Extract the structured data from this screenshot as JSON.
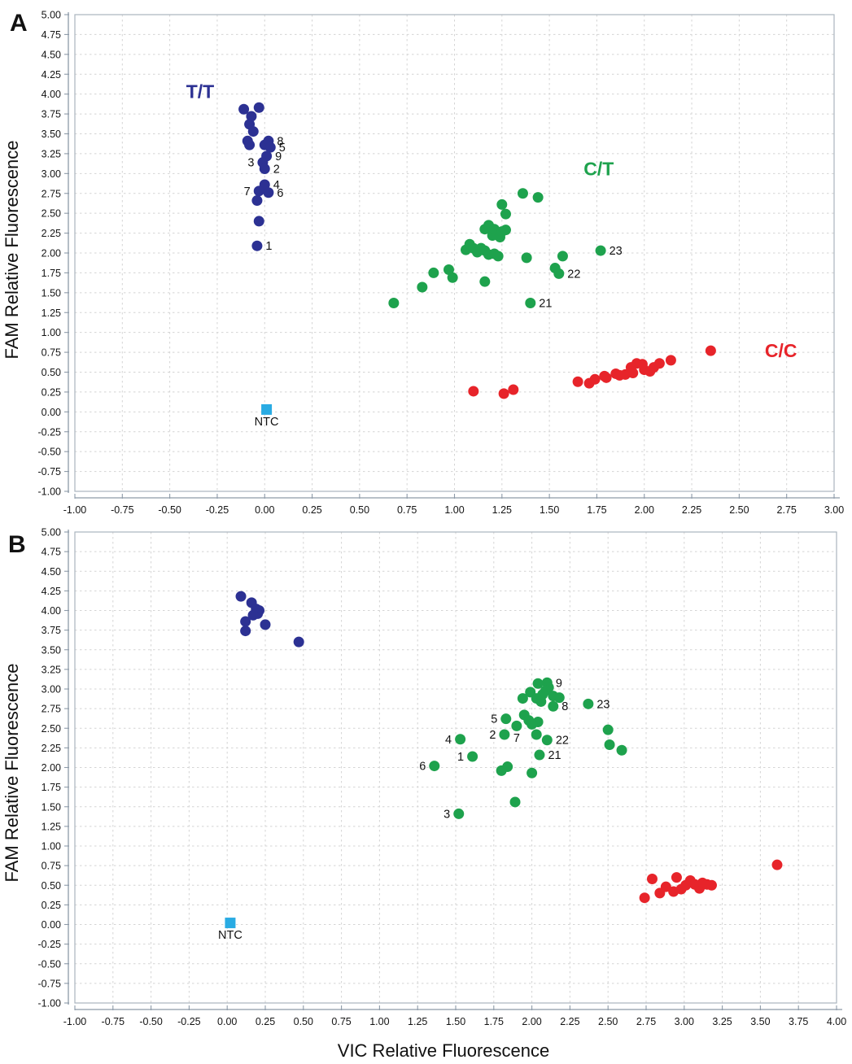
{
  "figure": {
    "x_title": "VIC Relative Fluorescence",
    "panels": [
      {
        "letter": "A",
        "y_title": "FAM Relative Fluorescence"
      },
      {
        "letter": "B",
        "y_title": "FAM Relative Fluorescence"
      }
    ]
  },
  "chart_data": [
    {
      "panel": "A",
      "type": "scatter",
      "title": "",
      "xlabel": "VIC Relative Fluorescence",
      "ylabel": "FAM Relative Fluorescence",
      "x_axis": {
        "min": -1.0,
        "max": 3.0,
        "tick_step": 0.25
      },
      "y_axis": {
        "min": -1.0,
        "max": 5.0,
        "tick_step": 0.25
      },
      "grid": true,
      "series": [
        {
          "name": "T/T",
          "color": "#2c3193",
          "marker": "circle",
          "cluster_label": {
            "text": "T/T",
            "x": -0.34,
            "y": 4.03
          },
          "points": [
            {
              "x": -0.11,
              "y": 3.81
            },
            {
              "x": -0.03,
              "y": 3.83
            },
            {
              "x": -0.07,
              "y": 3.72
            },
            {
              "x": -0.08,
              "y": 3.62
            },
            {
              "x": -0.06,
              "y": 3.53
            },
            {
              "x": -0.09,
              "y": 3.41
            },
            {
              "x": -0.08,
              "y": 3.36
            },
            {
              "x": 0.0,
              "y": 3.36
            },
            {
              "x": 0.02,
              "y": 3.41,
              "label": "8",
              "label_side": "right"
            },
            {
              "x": 0.03,
              "y": 3.33,
              "label": "5",
              "label_side": "right"
            },
            {
              "x": 0.01,
              "y": 3.22,
              "label": "9",
              "label_side": "right"
            },
            {
              "x": -0.01,
              "y": 3.14,
              "label": "3",
              "label_side": "left"
            },
            {
              "x": 0.0,
              "y": 3.06,
              "label": "2",
              "label_side": "right"
            },
            {
              "x": 0.0,
              "y": 2.86,
              "label": "4",
              "label_side": "right"
            },
            {
              "x": -0.03,
              "y": 2.78,
              "label": "7",
              "label_side": "left"
            },
            {
              "x": 0.02,
              "y": 2.76,
              "label": "6",
              "label_side": "right"
            },
            {
              "x": -0.04,
              "y": 2.66
            },
            {
              "x": -0.03,
              "y": 2.4
            },
            {
              "x": -0.04,
              "y": 2.09,
              "label": "1",
              "label_side": "right"
            }
          ]
        },
        {
          "name": "C/T",
          "color": "#1ea24d",
          "marker": "circle",
          "cluster_label": {
            "text": "C/T",
            "x": 1.76,
            "y": 3.06
          },
          "points": [
            {
              "x": 0.68,
              "y": 1.37
            },
            {
              "x": 0.83,
              "y": 1.57
            },
            {
              "x": 0.89,
              "y": 1.75
            },
            {
              "x": 0.97,
              "y": 1.79
            },
            {
              "x": 0.99,
              "y": 1.69
            },
            {
              "x": 1.16,
              "y": 1.64
            },
            {
              "x": 1.06,
              "y": 2.04
            },
            {
              "x": 1.08,
              "y": 2.11
            },
            {
              "x": 1.1,
              "y": 2.06
            },
            {
              "x": 1.12,
              "y": 2.01
            },
            {
              "x": 1.14,
              "y": 2.06
            },
            {
              "x": 1.16,
              "y": 2.03
            },
            {
              "x": 1.18,
              "y": 1.98
            },
            {
              "x": 1.21,
              "y": 1.99
            },
            {
              "x": 1.23,
              "y": 1.96
            },
            {
              "x": 1.16,
              "y": 2.3
            },
            {
              "x": 1.18,
              "y": 2.35
            },
            {
              "x": 1.2,
              "y": 2.22
            },
            {
              "x": 1.21,
              "y": 2.3
            },
            {
              "x": 1.24,
              "y": 2.2
            },
            {
              "x": 1.25,
              "y": 2.27
            },
            {
              "x": 1.27,
              "y": 2.29
            },
            {
              "x": 1.25,
              "y": 2.61
            },
            {
              "x": 1.27,
              "y": 2.49
            },
            {
              "x": 1.36,
              "y": 2.75
            },
            {
              "x": 1.44,
              "y": 2.7
            },
            {
              "x": 1.38,
              "y": 1.94
            },
            {
              "x": 1.57,
              "y": 1.96
            },
            {
              "x": 1.53,
              "y": 1.81
            },
            {
              "x": 1.55,
              "y": 1.74,
              "label": "22",
              "label_side": "right"
            },
            {
              "x": 1.77,
              "y": 2.03,
              "label": "23",
              "label_side": "right"
            },
            {
              "x": 1.4,
              "y": 1.37,
              "label": "21",
              "label_side": "right"
            }
          ]
        },
        {
          "name": "C/C",
          "color": "#e7242a",
          "marker": "circle",
          "cluster_label": {
            "text": "C/C",
            "x": 2.72,
            "y": 0.77
          },
          "points": [
            {
              "x": 1.1,
              "y": 0.26
            },
            {
              "x": 1.26,
              "y": 0.23
            },
            {
              "x": 1.31,
              "y": 0.28
            },
            {
              "x": 1.65,
              "y": 0.38
            },
            {
              "x": 1.71,
              "y": 0.36
            },
            {
              "x": 1.74,
              "y": 0.41
            },
            {
              "x": 1.79,
              "y": 0.45
            },
            {
              "x": 1.8,
              "y": 0.43
            },
            {
              "x": 1.85,
              "y": 0.48
            },
            {
              "x": 1.87,
              "y": 0.46
            },
            {
              "x": 1.9,
              "y": 0.47
            },
            {
              "x": 1.93,
              "y": 0.56
            },
            {
              "x": 1.94,
              "y": 0.49
            },
            {
              "x": 1.96,
              "y": 0.61
            },
            {
              "x": 1.99,
              "y": 0.6
            },
            {
              "x": 2.0,
              "y": 0.53
            },
            {
              "x": 2.03,
              "y": 0.51
            },
            {
              "x": 2.05,
              "y": 0.56
            },
            {
              "x": 2.08,
              "y": 0.61
            },
            {
              "x": 2.14,
              "y": 0.65
            },
            {
              "x": 2.35,
              "y": 0.77
            }
          ]
        },
        {
          "name": "NTC",
          "color": "#29abe3",
          "marker": "square",
          "points": [
            {
              "x": 0.01,
              "y": 0.03,
              "label": "NTC",
              "label_side": "below"
            }
          ]
        }
      ]
    },
    {
      "panel": "B",
      "type": "scatter",
      "title": "",
      "xlabel": "VIC Relative Fluorescence",
      "ylabel": "FAM Relative Fluorescence",
      "x_axis": {
        "min": -1.0,
        "max": 4.0,
        "tick_step": 0.25
      },
      "y_axis": {
        "min": -1.0,
        "max": 5.0,
        "tick_step": 0.25
      },
      "grid": true,
      "series": [
        {
          "name": "T/T",
          "color": "#2c3193",
          "marker": "circle",
          "points": [
            {
              "x": 0.09,
              "y": 4.18
            },
            {
              "x": 0.16,
              "y": 4.1
            },
            {
              "x": 0.19,
              "y": 4.02
            },
            {
              "x": 0.21,
              "y": 4.0
            },
            {
              "x": 0.2,
              "y": 3.96
            },
            {
              "x": 0.17,
              "y": 3.94
            },
            {
              "x": 0.12,
              "y": 3.86
            },
            {
              "x": 0.25,
              "y": 3.82
            },
            {
              "x": 0.12,
              "y": 3.74
            },
            {
              "x": 0.47,
              "y": 3.6
            }
          ]
        },
        {
          "name": "C/T",
          "color": "#1ea24d",
          "marker": "circle",
          "points": [
            {
              "x": 2.1,
              "y": 3.08,
              "label": "9",
              "label_side": "right"
            },
            {
              "x": 2.04,
              "y": 3.07
            },
            {
              "x": 2.11,
              "y": 3.02
            },
            {
              "x": 2.09,
              "y": 2.98
            },
            {
              "x": 1.99,
              "y": 2.96
            },
            {
              "x": 2.07,
              "y": 2.93
            },
            {
              "x": 2.14,
              "y": 2.91
            },
            {
              "x": 2.18,
              "y": 2.89
            },
            {
              "x": 2.03,
              "y": 2.88
            },
            {
              "x": 1.94,
              "y": 2.88
            },
            {
              "x": 2.06,
              "y": 2.84
            },
            {
              "x": 2.14,
              "y": 2.78,
              "label": "8",
              "label_side": "right"
            },
            {
              "x": 2.37,
              "y": 2.81,
              "label": "23",
              "label_side": "right"
            },
            {
              "x": 1.95,
              "y": 2.67
            },
            {
              "x": 1.83,
              "y": 2.62,
              "label": "5",
              "label_side": "left"
            },
            {
              "x": 1.98,
              "y": 2.6
            },
            {
              "x": 2.04,
              "y": 2.58
            },
            {
              "x": 2.0,
              "y": 2.55
            },
            {
              "x": 1.9,
              "y": 2.53,
              "label": "7",
              "label_side": "below"
            },
            {
              "x": 2.03,
              "y": 2.42
            },
            {
              "x": 1.82,
              "y": 2.42,
              "label": "2",
              "label_side": "left"
            },
            {
              "x": 1.53,
              "y": 2.36,
              "label": "4",
              "label_side": "left"
            },
            {
              "x": 2.1,
              "y": 2.35,
              "label": "22",
              "label_side": "right"
            },
            {
              "x": 2.5,
              "y": 2.48
            },
            {
              "x": 2.51,
              "y": 2.29
            },
            {
              "x": 2.59,
              "y": 2.22
            },
            {
              "x": 2.05,
              "y": 2.16,
              "label": "21",
              "label_side": "right"
            },
            {
              "x": 1.61,
              "y": 2.14,
              "label": "1",
              "label_side": "left"
            },
            {
              "x": 1.36,
              "y": 2.02,
              "label": "6",
              "label_side": "left"
            },
            {
              "x": 1.84,
              "y": 2.01
            },
            {
              "x": 1.8,
              "y": 1.96
            },
            {
              "x": 2.0,
              "y": 1.93
            },
            {
              "x": 1.89,
              "y": 1.56
            },
            {
              "x": 1.52,
              "y": 1.41,
              "label": "3",
              "label_side": "left"
            }
          ]
        },
        {
          "name": "C/C",
          "color": "#e7242a",
          "marker": "circle",
          "points": [
            {
              "x": 2.74,
              "y": 0.34
            },
            {
              "x": 2.79,
              "y": 0.58
            },
            {
              "x": 2.84,
              "y": 0.4
            },
            {
              "x": 2.88,
              "y": 0.48
            },
            {
              "x": 2.93,
              "y": 0.42
            },
            {
              "x": 2.95,
              "y": 0.6
            },
            {
              "x": 2.98,
              "y": 0.45
            },
            {
              "x": 3.01,
              "y": 0.5
            },
            {
              "x": 3.04,
              "y": 0.56
            },
            {
              "x": 3.07,
              "y": 0.51
            },
            {
              "x": 3.1,
              "y": 0.46
            },
            {
              "x": 3.12,
              "y": 0.53
            },
            {
              "x": 3.15,
              "y": 0.51
            },
            {
              "x": 3.18,
              "y": 0.5
            },
            {
              "x": 3.61,
              "y": 0.76
            }
          ]
        },
        {
          "name": "NTC",
          "color": "#29abe3",
          "marker": "square",
          "points": [
            {
              "x": 0.02,
              "y": 0.02,
              "label": "NTC",
              "label_side": "below"
            }
          ]
        }
      ]
    }
  ]
}
